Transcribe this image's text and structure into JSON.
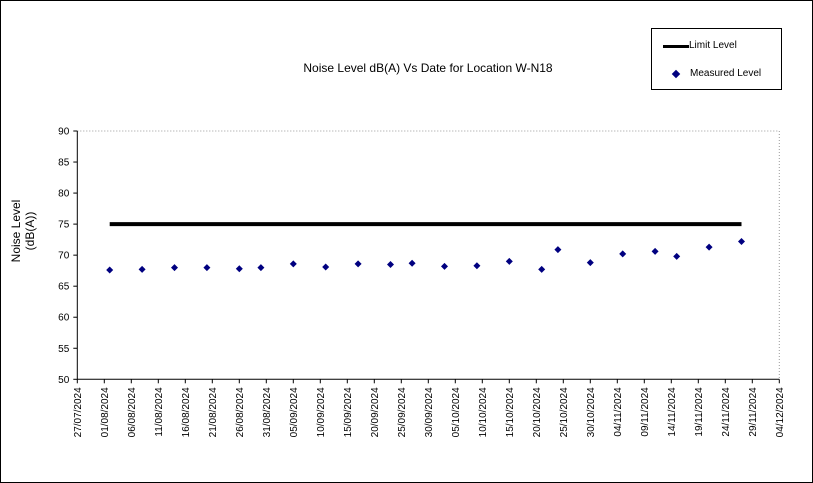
{
  "frame": {
    "background": "#ffffff",
    "border_color": "#000000"
  },
  "title": {
    "text": "Noise Level dB(A) Vs Date for Location W-N18"
  },
  "y_axis_title": {
    "line1": "Noise Level",
    "line2": "(dB(A))"
  },
  "legend": {
    "position": "top-right",
    "items": [
      {
        "label": "Limit Level",
        "marker": "line",
        "color": "#000000"
      },
      {
        "label": "Measured Level",
        "marker": "diamond",
        "color": "#000080"
      }
    ]
  },
  "chart_data": {
    "type": "scatter",
    "title": "Noise Level dB(A) Vs Date for Location W-N18",
    "xlabel": "",
    "ylabel": "Noise Level (dB(A))",
    "ylim": [
      50,
      90
    ],
    "y_ticks": [
      90,
      85,
      80,
      75,
      70,
      65,
      60,
      55,
      50
    ],
    "x_tick_interval_days": 5,
    "x_tick_labels": [
      "27/07/2024",
      "01/08/2024",
      "06/08/2024",
      "11/08/2024",
      "16/08/2024",
      "21/08/2024",
      "26/08/2024",
      "31/08/2024",
      "05/09/2024",
      "10/09/2024",
      "15/09/2024",
      "20/09/2024",
      "25/09/2024",
      "30/09/2024",
      "05/10/2024",
      "10/10/2024",
      "15/10/2024",
      "20/10/2024",
      "25/10/2024",
      "30/10/2024",
      "04/11/2024",
      "09/11/2024",
      "14/11/2024",
      "19/11/2024",
      "24/11/2024",
      "29/11/2024",
      "04/12/2024"
    ],
    "grid": false,
    "legend_position": "top-right",
    "colors": {
      "measured": "#000080",
      "limit": "#000000",
      "axis": "#000000",
      "plot_border_dotted": "#999999"
    },
    "series": [
      {
        "name": "Limit Level",
        "type": "line",
        "color": "#000000",
        "stroke_width": 4,
        "points": [
          {
            "date": "02/08/2024",
            "value": 75
          },
          {
            "date": "27/11/2024",
            "value": 75
          }
        ]
      },
      {
        "name": "Measured Level",
        "type": "scatter",
        "marker": "diamond",
        "color": "#000080",
        "points": [
          {
            "date": "02/08/2024",
            "value": 67.6
          },
          {
            "date": "08/08/2024",
            "value": 67.7
          },
          {
            "date": "14/08/2024",
            "value": 68.0
          },
          {
            "date": "20/08/2024",
            "value": 68.0
          },
          {
            "date": "26/08/2024",
            "value": 67.8
          },
          {
            "date": "30/08/2024",
            "value": 68.0
          },
          {
            "date": "05/09/2024",
            "value": 68.6
          },
          {
            "date": "11/09/2024",
            "value": 68.1
          },
          {
            "date": "17/09/2024",
            "value": 68.6
          },
          {
            "date": "23/09/2024",
            "value": 68.5
          },
          {
            "date": "27/09/2024",
            "value": 68.7
          },
          {
            "date": "03/10/2024",
            "value": 68.2
          },
          {
            "date": "09/10/2024",
            "value": 68.3
          },
          {
            "date": "15/10/2024",
            "value": 69.0
          },
          {
            "date": "21/10/2024",
            "value": 67.7
          },
          {
            "date": "24/10/2024",
            "value": 70.9
          },
          {
            "date": "30/10/2024",
            "value": 68.8
          },
          {
            "date": "05/11/2024",
            "value": 70.2
          },
          {
            "date": "11/11/2024",
            "value": 70.6
          },
          {
            "date": "15/11/2024",
            "value": 69.8
          },
          {
            "date": "21/11/2024",
            "value": 71.3
          },
          {
            "date": "27/11/2024",
            "value": 72.2
          }
        ]
      }
    ]
  }
}
